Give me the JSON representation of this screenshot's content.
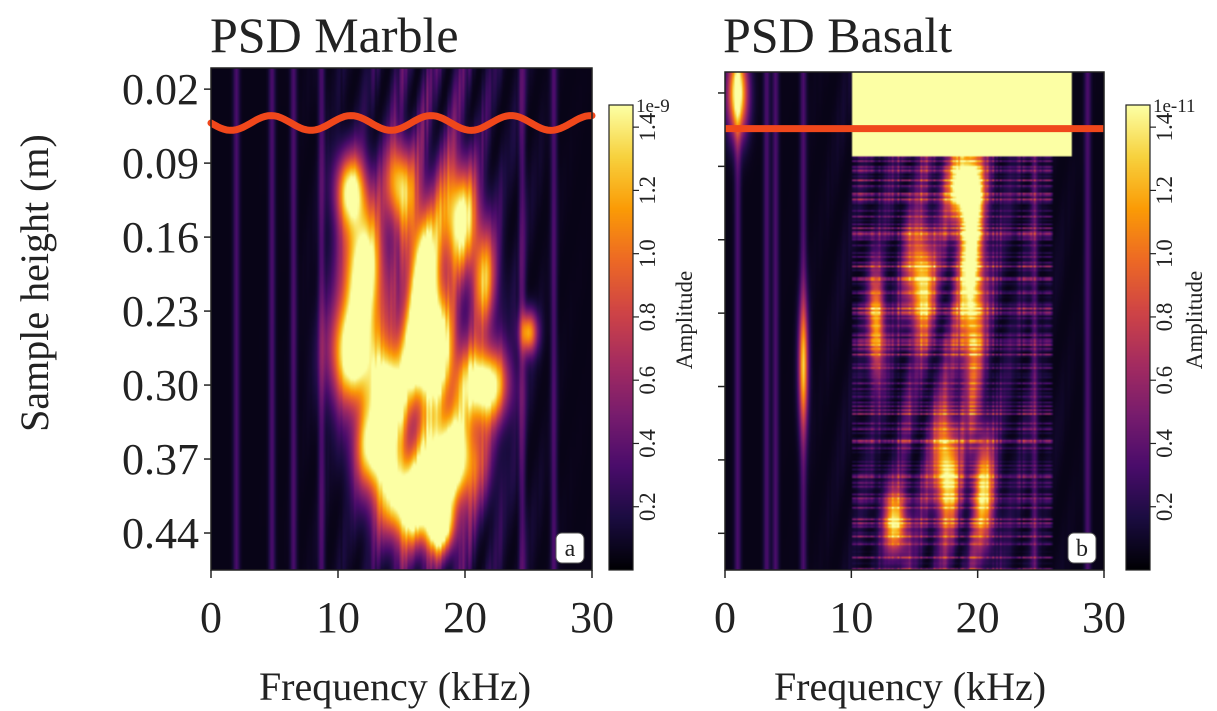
{
  "colors": {
    "cmap": [
      "#000004",
      "#1b0c41",
      "#4a0c6b",
      "#781c6d",
      "#a52c60",
      "#cf4446",
      "#ed6925",
      "#fb9b06",
      "#f7d13d",
      "#fcffa4"
    ],
    "redline": "#f0471b",
    "background": "#ffffff",
    "ink": "#222222"
  },
  "figure": {
    "ylabel": "Sample height (m)",
    "xlabel": "Frequency (kHz)",
    "colorbar_label": "Amplitude"
  },
  "chart_data": [
    {
      "type": "heatmap",
      "panel": "a",
      "title": "PSD Marble",
      "xlabel": "Frequency (kHz)",
      "ylabel": "Sample height (m)",
      "x_ticks": [
        0,
        10,
        20,
        30
      ],
      "y_ticks": [
        "0.02",
        "0.09",
        "0.16",
        "0.23",
        "0.30",
        "0.37",
        "0.44"
      ],
      "y_tick_values": [
        0.02,
        0.09,
        0.16,
        0.23,
        0.3,
        0.37,
        0.44
      ],
      "xlim": [
        0,
        30
      ],
      "ylim": [
        0.0,
        0.475
      ],
      "y_inverted": true,
      "colorbar": {
        "ticks": [
          "0.2",
          "0.4",
          "0.6",
          "0.8",
          "1.0",
          "1.2",
          "1.4"
        ],
        "tick_values": [
          0.2,
          0.4,
          0.6,
          0.8,
          1.0,
          1.2,
          1.4
        ],
        "range": [
          0,
          1.47
        ],
        "scale_label": "1e-9",
        "label": "Amplitude"
      },
      "red_line": {
        "shape": "wavy",
        "height_m": 0.052,
        "amplitude_m": 0.007,
        "period_khz": 6.3
      },
      "hot_blobs": [
        {
          "f": 11.0,
          "h": 0.115,
          "wf": 1.2,
          "wh": 0.035,
          "a": 1.3
        },
        {
          "f": 14.8,
          "h": 0.11,
          "wf": 1.1,
          "wh": 0.04,
          "a": 1.2
        },
        {
          "f": 19.5,
          "h": 0.14,
          "wf": 1.4,
          "wh": 0.05,
          "a": 1.4
        },
        {
          "f": 12.0,
          "h": 0.19,
          "wf": 1.6,
          "wh": 0.06,
          "a": 1.6
        },
        {
          "f": 16.8,
          "h": 0.2,
          "wf": 1.3,
          "wh": 0.07,
          "a": 1.7
        },
        {
          "f": 21.5,
          "h": 0.2,
          "wf": 1.0,
          "wh": 0.05,
          "a": 1.0
        },
        {
          "f": 11.2,
          "h": 0.27,
          "wf": 1.8,
          "wh": 0.05,
          "a": 1.6
        },
        {
          "f": 17.0,
          "h": 0.27,
          "wf": 2.2,
          "wh": 0.05,
          "a": 1.7
        },
        {
          "f": 14.0,
          "h": 0.31,
          "wf": 1.3,
          "wh": 0.04,
          "a": 1.5
        },
        {
          "f": 21.5,
          "h": 0.3,
          "wf": 1.8,
          "wh": 0.035,
          "a": 1.6
        },
        {
          "f": 25.0,
          "h": 0.25,
          "wf": 0.7,
          "wh": 0.02,
          "a": 1.1
        },
        {
          "f": 13.0,
          "h": 0.36,
          "wf": 1.6,
          "wh": 0.04,
          "a": 1.5
        },
        {
          "f": 18.8,
          "h": 0.37,
          "wf": 2.4,
          "wh": 0.045,
          "a": 1.7
        },
        {
          "f": 15.5,
          "h": 0.41,
          "wf": 2.2,
          "wh": 0.04,
          "a": 1.6
        },
        {
          "f": 18.0,
          "h": 0.435,
          "wf": 1.2,
          "wh": 0.025,
          "a": 1.3
        }
      ],
      "faint_lines_khz": [
        2.0,
        4.8,
        6.5,
        8.7,
        24.5,
        27.0
      ]
    },
    {
      "type": "heatmap",
      "panel": "b",
      "title": "PSD Basalt",
      "xlabel": "Frequency (kHz)",
      "x_ticks": [
        0,
        10,
        20,
        30
      ],
      "y_ticks_labeled": false,
      "xlim": [
        0,
        30
      ],
      "ylim": [
        0.0,
        0.475
      ],
      "y_inverted": true,
      "colorbar": {
        "ticks": [
          "0.2",
          "0.4",
          "0.6",
          "0.8",
          "1.0",
          "1.2",
          "1.4"
        ],
        "tick_values": [
          0.2,
          0.4,
          0.6,
          0.8,
          1.0,
          1.2,
          1.4
        ],
        "range": [
          0,
          1.47
        ],
        "scale_label": "1e-11",
        "label": "Amplitude"
      },
      "red_line": {
        "shape": "flat",
        "height_m": 0.054
      },
      "saturated_band": {
        "f_from": 10.0,
        "f_to": 27.5,
        "h_from": 0.0,
        "h_to": 0.08
      },
      "hot_blobs": [
        {
          "f": 19.0,
          "h": 0.11,
          "wf": 1.3,
          "wh": 0.03,
          "a": 1.4
        },
        {
          "f": 19.5,
          "h": 0.19,
          "wf": 1.0,
          "wh": 0.1,
          "a": 1.4
        },
        {
          "f": 15.5,
          "h": 0.2,
          "wf": 1.0,
          "wh": 0.05,
          "a": 1.2
        },
        {
          "f": 12.0,
          "h": 0.24,
          "wf": 0.6,
          "wh": 0.05,
          "a": 1.1
        },
        {
          "f": 17.5,
          "h": 0.38,
          "wf": 0.9,
          "wh": 0.05,
          "a": 1.3
        },
        {
          "f": 20.5,
          "h": 0.4,
          "wf": 0.8,
          "wh": 0.05,
          "a": 1.1
        },
        {
          "f": 13.5,
          "h": 0.43,
          "wf": 0.9,
          "wh": 0.03,
          "a": 1.2
        },
        {
          "f": 1.0,
          "h": 0.02,
          "wf": 0.8,
          "wh": 0.04,
          "a": 1.5
        },
        {
          "f": 6.2,
          "h": 0.28,
          "wf": 0.4,
          "wh": 0.06,
          "a": 1.0
        }
      ],
      "faint_lines_khz": [
        1.0,
        3.3,
        4.0,
        6.2,
        24.5,
        28.7
      ]
    }
  ]
}
